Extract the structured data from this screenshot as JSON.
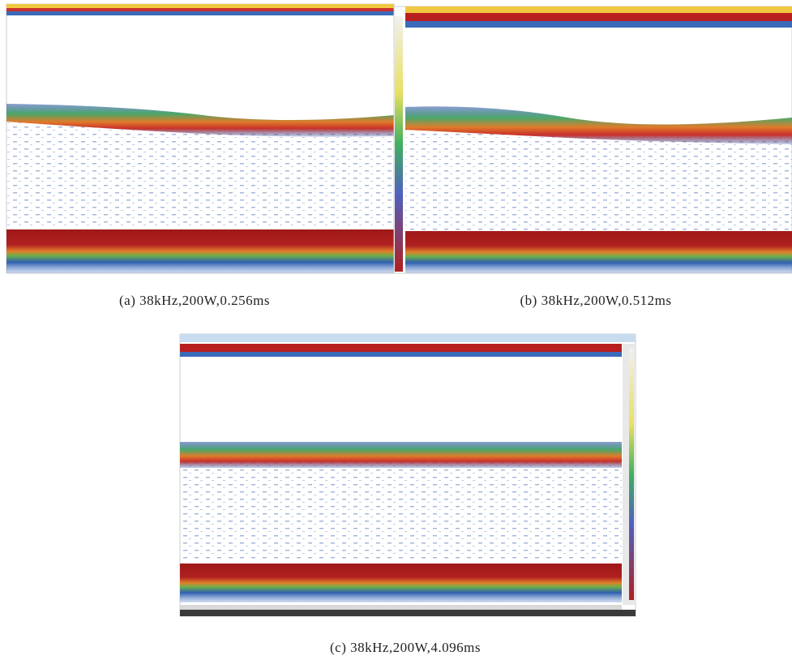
{
  "figure": {
    "panels": [
      {
        "caption": "(a) 38kHz,200W,0.256ms"
      },
      {
        "caption": "(b) 38kHz,200W,0.512ms"
      },
      {
        "caption": "(c) 38kHz,200W,4.096ms"
      }
    ]
  }
}
